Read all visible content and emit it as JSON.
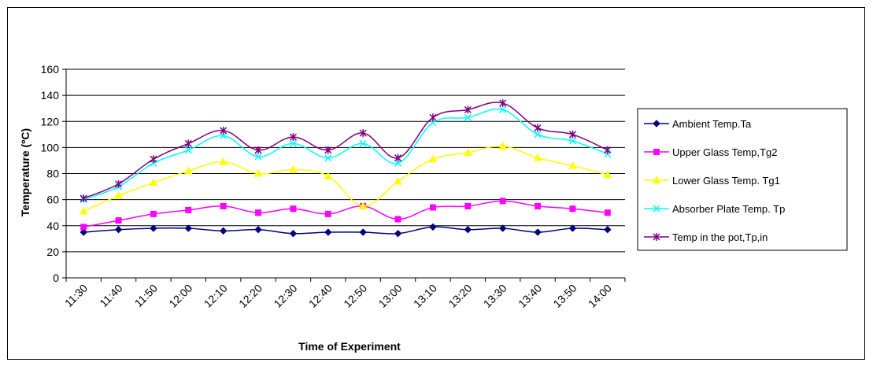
{
  "chart_data": {
    "type": "line",
    "title": "",
    "xlabel": "Time of Experiment",
    "ylabel": "Temperature (ºC)",
    "ylim": [
      0,
      160
    ],
    "yticks": [
      0,
      20,
      40,
      60,
      80,
      100,
      120,
      140,
      160
    ],
    "grid": "horizontal",
    "legend_position": "right",
    "categories": [
      "11:30",
      "11:40",
      "11:50",
      "12:00",
      "12:10",
      "12:20",
      "12:30",
      "12:40",
      "12:50",
      "13:00",
      "13:10",
      "13:20",
      "13:30",
      "13:40",
      "13:50",
      "14:00"
    ],
    "series": [
      {
        "name": "Ambient Temp.Ta",
        "color": "#000080",
        "marker": "diamond",
        "values": [
          35,
          37,
          38,
          38,
          36,
          37,
          34,
          35,
          35,
          34,
          39,
          37,
          38,
          35,
          38,
          37
        ]
      },
      {
        "name": "Upper Glass Temp,Tg2",
        "color": "#FF00FF",
        "marker": "square",
        "values": [
          39,
          44,
          49,
          52,
          55,
          50,
          53,
          49,
          55,
          45,
          54,
          55,
          59,
          55,
          53,
          50
        ]
      },
      {
        "name": "Lower Glass Temp. Tg1",
        "color": "#FFFF00",
        "marker": "triangle",
        "values": [
          51,
          63,
          73,
          82,
          89,
          80,
          83,
          78,
          55,
          74,
          91,
          96,
          101,
          92,
          86,
          79
        ]
      },
      {
        "name": "Absorber Plate Temp. Tp",
        "color": "#00FFFF",
        "marker": "x",
        "values": [
          60,
          70,
          88,
          98,
          109,
          93,
          103,
          92,
          103,
          88,
          119,
          123,
          129,
          110,
          105,
          95
        ]
      },
      {
        "name": "Temp in the pot,Tp,in",
        "color": "#800080",
        "marker": "asterisk",
        "values": [
          61,
          72,
          91,
          103,
          113,
          98,
          108,
          98,
          111,
          92,
          123,
          129,
          134,
          115,
          110,
          98
        ]
      }
    ]
  }
}
